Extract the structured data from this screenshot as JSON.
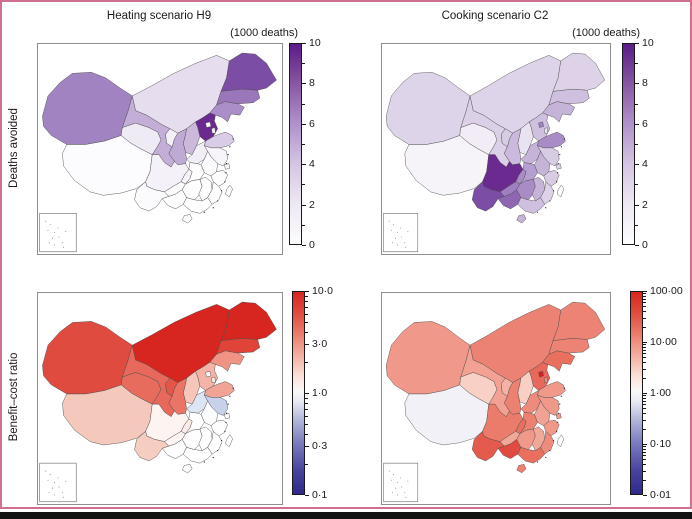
{
  "figure": {
    "col_titles": [
      "Heating scenario H9",
      "Cooking scenario C2"
    ],
    "row_labels": [
      "Deaths avoided",
      "Benefit–cost ratio"
    ],
    "unit_label": "(1000 deaths)",
    "border_color": "#d06f8e",
    "bottom_bar_color": "#121212"
  },
  "gradients": {
    "purple": [
      "#fdfcfe 0%",
      "#eee8f3 20%",
      "#d5c5e3 40%",
      "#ac8cc8 62%",
      "#84519f 82%",
      "#5b1c87 100%"
    ],
    "rdbu": [
      "#2f2a8a 0%",
      "#4a44a0 12%",
      "#7d7fc0 26%",
      "#b9bddd 38%",
      "#e9eaf4 46%",
      "#faf8f8 51%",
      "#fbe2da 58%",
      "#f5b2a3 68%",
      "#ec7e6c 79%",
      "#e14a3c 90%",
      "#d7251f 100%"
    ]
  },
  "colorbars": [
    {
      "id": "deaths-heating",
      "scale": "linear",
      "min": 0,
      "max": 10,
      "gradient": "purple",
      "majors": [
        {
          "label": "10",
          "value": 10
        },
        {
          "label": "8",
          "value": 8
        },
        {
          "label": "6",
          "value": 6
        },
        {
          "label": "4",
          "value": 4
        },
        {
          "label": "2",
          "value": 2
        },
        {
          "label": "0",
          "value": 0
        }
      ]
    },
    {
      "id": "deaths-cooking",
      "scale": "linear",
      "min": 0,
      "max": 10,
      "gradient": "purple",
      "majors": [
        {
          "label": "10",
          "value": 10
        },
        {
          "label": "8",
          "value": 8
        },
        {
          "label": "6",
          "value": 6
        },
        {
          "label": "4",
          "value": 4
        },
        {
          "label": "2",
          "value": 2
        },
        {
          "label": "0",
          "value": 0
        }
      ]
    },
    {
      "id": "bcr-heating",
      "scale": "log",
      "min": 0.1,
      "max": 10,
      "gradient": "rdbu",
      "majors": [
        {
          "label": "10·0",
          "value": 10
        },
        {
          "label": "3·0",
          "value": 3
        },
        {
          "label": "1·0",
          "value": 1
        },
        {
          "label": "0·3",
          "value": 0.3
        },
        {
          "label": "0·1",
          "value": 0.1
        }
      ]
    },
    {
      "id": "bcr-cooking",
      "scale": "log",
      "min": 0.01,
      "max": 100,
      "gradient": "rdbu",
      "majors": [
        {
          "label": "100·00",
          "value": 100
        },
        {
          "label": "10·00",
          "value": 10
        },
        {
          "label": "1·00",
          "value": 1
        },
        {
          "label": "0·10",
          "value": 0.1
        },
        {
          "label": "0·01",
          "value": 0.01
        }
      ]
    }
  ],
  "maps": [
    {
      "id": "heating-deaths-avoided",
      "fills": {
        "xinjiang": "#a283c2",
        "tibet": "#fcfbfd",
        "qinghai": "#efebf4",
        "gansu": "#c3aed8",
        "ningxia": "#f3f0f7",
        "neimenggu": "#e6deee",
        "heilongjiang": "#7b4da5",
        "jilin": "#9a77bb",
        "liaoning": "#ab8dc8",
        "hebei": "#6a2a8f",
        "beijing": "#f8f6fb",
        "tianjin": "#f1edf6",
        "shanxi": "#cbb8da",
        "shaanxi": "#bfa9d5",
        "shandong": "#d9cce6",
        "henan": "#f2eef6",
        "jiangsu": "#f7f5fa",
        "anhui": "#fbfafd",
        "hubei": "#fdfdfe",
        "chongqing": "#f7f4f9",
        "sichuan": "#f4f1f8",
        "guizhou": "#fdfdfe",
        "yunnan": "#fbfafc",
        "guangxi": "#fefefe",
        "guangdong": "#fefefe",
        "hainan": "#fefefe",
        "hunan": "#fefefe",
        "jiangxi": "#fefefe",
        "zhejiang": "#fefefe",
        "fujian": "#fefefe",
        "shanghai": "#fdfdfe",
        "taiwan": "#ffffff"
      }
    },
    {
      "id": "cooking-deaths-avoided",
      "fills": {
        "xinjiang": "#ded4e9",
        "tibet": "#f6f3f9",
        "qinghai": "#f1ecf5",
        "gansu": "#dbd0e7",
        "ningxia": "#d8cce5",
        "neimenggu": "#ded4e9",
        "heilongjiang": "#ddd2e8",
        "jilin": "#cfc0df",
        "liaoning": "#c5b3d8",
        "hebei": "#cfc0df",
        "beijing": "#a183c1",
        "tianjin": "#eae3f0",
        "shanxi": "#e9e2f0",
        "shaanxi": "#cbbade",
        "shandong": "#a98cc6",
        "henan": "#c5b3d8",
        "jiangsu": "#d8cce5",
        "anhui": "#c5b3d8",
        "hubei": "#b59fd1",
        "chongqing": "#a98cc6",
        "sichuan": "#6a2a8f",
        "guizhou": "#9f7fc0",
        "yunnan": "#7b4da5",
        "guangxi": "#8f66b2",
        "guangdong": "#cfc0df",
        "hainan": "#c5b3d8",
        "hunan": "#a98cc6",
        "jiangxi": "#c5b3d8",
        "zhejiang": "#d8cce5",
        "fujian": "#ddd2e8",
        "shanghai": "#ddd2e8",
        "taiwan": "#ffffff"
      }
    },
    {
      "id": "heating-benefit-cost-ratio",
      "fills": {
        "xinjiang": "#e04b40",
        "tibet": "#f5c8bc",
        "qinghai": "#e86c5e",
        "gansu": "#e8695c",
        "ningxia": "#e4564a",
        "neimenggu": "#d7261f",
        "heilongjiang": "#d7261f",
        "jilin": "#e04438",
        "liaoning": "#f09384",
        "hebei": "#f4b3a6",
        "beijing": "#fdfbfa",
        "tianjin": "#fbeae5",
        "shanxi": "#f7c6ba",
        "shaanxi": "#ea7466",
        "shandong": "#f1a496",
        "henan": "#dde4f3",
        "jiangsu": "#c8d1ea",
        "anhui": "#fbfcfd",
        "hubei": "#fefefe",
        "chongqing": "#fbece7",
        "sichuan": "#fdf3f0",
        "guizhou": "#fdf6f4",
        "yunnan": "#f6cdc1",
        "guangxi": "#fefefe",
        "guangdong": "#fefefe",
        "hainan": "#fefefe",
        "hunan": "#fefefe",
        "jiangxi": "#fefefe",
        "zhejiang": "#fefefe",
        "fujian": "#fefefe",
        "shanghai": "#fdfdfe",
        "taiwan": "#ffffff"
      }
    },
    {
      "id": "cooking-benefit-cost-ratio",
      "fills": {
        "xinjiang": "#f0988a",
        "tibet": "#f2f1f7",
        "qinghai": "#f8d0c6",
        "gansu": "#f2a192",
        "ningxia": "#f4b2a4",
        "neimenggu": "#ec8273",
        "heilongjiang": "#ec8374",
        "jilin": "#ec8374",
        "liaoning": "#e9705f",
        "hebei": "#e8685c",
        "beijing": "#d0221f",
        "tianjin": "#ee8b7c",
        "shanxi": "#f8cfc5",
        "shaanxi": "#ec8071",
        "shandong": "#f0998b",
        "henan": "#ee8b7c",
        "jiangsu": "#f0998b",
        "anhui": "#f0a294",
        "hubei": "#ec8071",
        "chongqing": "#e9705f",
        "sichuan": "#eb7b6b",
        "guizhou": "#f2a899",
        "yunnan": "#e45a4d",
        "guangxi": "#e04a40",
        "guangdong": "#e9705f",
        "hainan": "#ec8071",
        "hunan": "#f0998b",
        "jiangxi": "#f2a899",
        "zhejiang": "#f0998b",
        "fujian": "#ee8b7c",
        "shanghai": "#f0998b",
        "taiwan": "#ffffff"
      }
    }
  ],
  "chart_data": [
    {
      "type": "choropleth",
      "title": "Heating scenario H9 — Deaths avoided",
      "unit": "(1000 deaths)",
      "scale": "linear 0–10, purple colormap"
    },
    {
      "type": "choropleth",
      "title": "Cooking scenario C2 — Deaths avoided",
      "unit": "(1000 deaths)",
      "scale": "linear 0–10, purple colormap"
    },
    {
      "type": "choropleth",
      "title": "Heating scenario H9 — Benefit–cost ratio",
      "scale": "log 0·1–10·0, blue-white-red colormap"
    },
    {
      "type": "choropleth",
      "title": "Cooking scenario C2 — Benefit–cost ratio",
      "scale": "log 0·01–100·00, blue-white-red colormap"
    }
  ]
}
